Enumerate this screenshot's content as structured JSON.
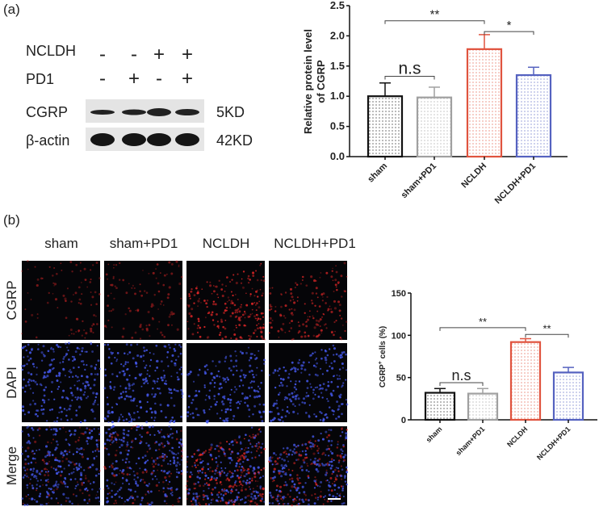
{
  "panel_a": {
    "label": "(a)",
    "blot": {
      "conditions": [
        {
          "name": "NCLDH",
          "signs": [
            "-",
            "-",
            "+",
            "+"
          ]
        },
        {
          "name": "PD1",
          "signs": [
            "-",
            "+",
            "-",
            "+"
          ]
        }
      ],
      "bands": [
        {
          "name": "CGRP",
          "size": "5KD"
        },
        {
          "name": "β-actin",
          "size": "42KD"
        }
      ]
    }
  },
  "panel_b": {
    "label": "(b)",
    "columns": [
      "sham",
      "sham+PD1",
      "NCLDH",
      "NCLDH+PD1"
    ],
    "rows": [
      "CGRP",
      "DAPI",
      "Merge"
    ]
  },
  "chart_data": [
    {
      "type": "bar",
      "categories": [
        "sham",
        "sham+PD1",
        "NCLDH",
        "NCLDH+PD1"
      ],
      "values": [
        1.0,
        0.98,
        1.78,
        1.35
      ],
      "errors": [
        0.22,
        0.17,
        0.24,
        0.13
      ],
      "colors": [
        "#111111",
        "#a0a0a0",
        "#e0533e",
        "#5562c0"
      ],
      "ylabel_lines": [
        "Relative protein level",
        "of CGRP"
      ],
      "ylim": [
        0,
        2.5
      ],
      "yticks": [
        "0.0",
        "0.5",
        "1.0",
        "1.5",
        "2.0",
        "2.5"
      ],
      "annotations": [
        {
          "label": "**",
          "from": 0,
          "to": 2,
          "y": 2.25
        },
        {
          "label": "*",
          "from": 2,
          "to": 3,
          "y": 2.07
        },
        {
          "label": "n.s",
          "from": 0,
          "to": 1,
          "y": 1.33
        }
      ]
    },
    {
      "type": "bar",
      "categories": [
        "sham",
        "sham+PD1",
        "NCLDH",
        "NCLDH+PD1"
      ],
      "values": [
        32,
        31,
        92,
        56
      ],
      "errors": [
        5,
        6,
        4,
        6
      ],
      "colors": [
        "#111111",
        "#a0a0a0",
        "#e0533e",
        "#5562c0"
      ],
      "ylabel": "CGRP",
      "ylabel_sup": "+",
      "ylabel_tail": " cells (%)",
      "ylim": [
        0,
        150
      ],
      "yticks": [
        "0",
        "50",
        "100",
        "150"
      ],
      "annotations": [
        {
          "label": "**",
          "from": 0,
          "to": 2,
          "y": 109
        },
        {
          "label": "**",
          "from": 2,
          "to": 3,
          "y": 101
        },
        {
          "label": "n.s",
          "from": 0,
          "to": 1,
          "y": 44
        }
      ]
    }
  ]
}
